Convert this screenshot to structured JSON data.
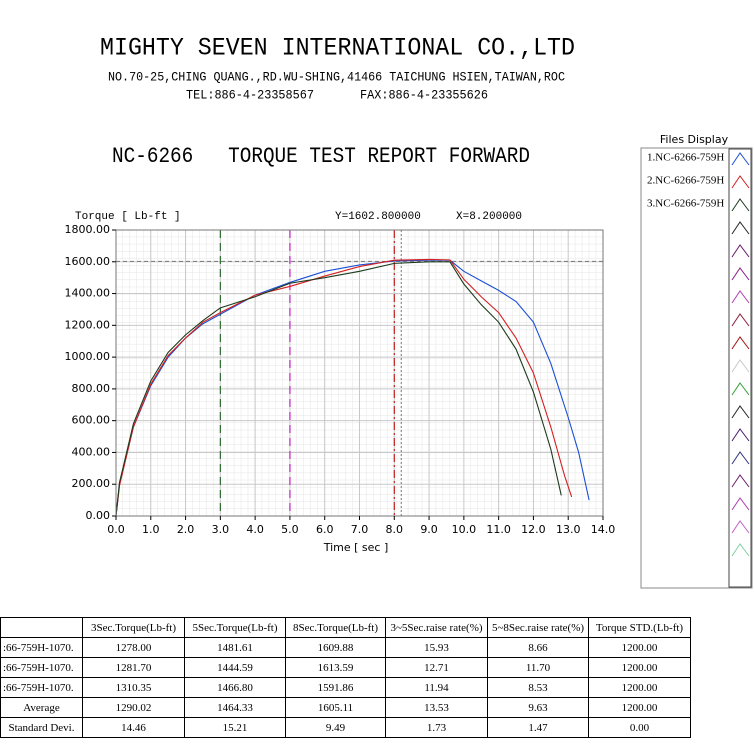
{
  "header": {
    "company": "MIGHTY SEVEN INTERNATIONAL CO.,LTD",
    "address": "NO.70-25,CHING QUANG.,RD.WU-SHING,41466 TAICHUNG HSIEN,TAIWAN,ROC",
    "tel": "TEL:886-4-23358567",
    "fax": "FAX:886-4-23355626",
    "report_title": "NC-6266   TORQUE TEST REPORT FORWARD"
  },
  "chart_data": {
    "type": "line",
    "y_label": "Torque [ Lb-ft ]",
    "x_label": "Time [ sec ]",
    "xlim": [
      0,
      14
    ],
    "ylim": [
      0,
      1800
    ],
    "grid": true,
    "xticks": [
      {
        "value": 0,
        "label": "0.0"
      },
      {
        "value": 1,
        "label": "1.0"
      },
      {
        "value": 2,
        "label": "2.0"
      },
      {
        "value": 3,
        "label": "3.0"
      },
      {
        "value": 4,
        "label": "4.0"
      },
      {
        "value": 5,
        "label": "5.0"
      },
      {
        "value": 6,
        "label": "6.0"
      },
      {
        "value": 7,
        "label": "7.0"
      },
      {
        "value": 8,
        "label": "8.0"
      },
      {
        "value": 9,
        "label": "9.0"
      },
      {
        "value": 10,
        "label": "10.0"
      },
      {
        "value": 11,
        "label": "11.0"
      },
      {
        "value": 12,
        "label": "12.0"
      },
      {
        "value": 13,
        "label": "13.0"
      },
      {
        "value": 14,
        "label": "14.0"
      }
    ],
    "yticks": [
      {
        "value": 0,
        "label": "0.00"
      },
      {
        "value": 200,
        "label": "200.00"
      },
      {
        "value": 400,
        "label": "400.00"
      },
      {
        "value": 600,
        "label": "600.00"
      },
      {
        "value": 800,
        "label": "800.00"
      },
      {
        "value": 1000,
        "label": "1000.00"
      },
      {
        "value": 1200,
        "label": "1200.00"
      },
      {
        "value": 1400,
        "label": "1400.00"
      },
      {
        "value": 1600,
        "label": "1600.00"
      },
      {
        "value": 1800,
        "label": "1800.00"
      }
    ],
    "markers": [
      {
        "x": 3,
        "color": "#2f6b2f",
        "dash": "dash"
      },
      {
        "x": 5,
        "color": "#c020c0",
        "dash": "dash"
      },
      {
        "x": 8,
        "color": "#c02020",
        "dash": "dashdot"
      }
    ],
    "cursor": {
      "x": {
        "value": 8.2,
        "label": "X=8.200000"
      },
      "y": {
        "value": 1602.8,
        "label": "Y=1602.800000"
      }
    },
    "series": [
      {
        "name": "1.NC-6266-759H",
        "color": "#1a4fd6",
        "x": [
          0,
          0.1,
          0.5,
          1,
          1.5,
          2,
          2.5,
          3,
          4,
          5,
          6,
          7,
          8,
          9,
          9.6,
          10,
          10.5,
          11,
          11.5,
          12,
          12.5,
          13,
          13.3,
          13.6
        ],
        "values": [
          0,
          200,
          560,
          820,
          1000,
          1120,
          1210,
          1270,
          1390,
          1470,
          1540,
          1580,
          1605,
          1610,
          1610,
          1540,
          1480,
          1420,
          1350,
          1220,
          960,
          620,
          400,
          100
        ]
      },
      {
        "name": "2.NC-6266-759H",
        "color": "#d42020",
        "x": [
          0,
          0.1,
          0.5,
          1,
          1.5,
          2,
          2.5,
          3,
          4,
          5,
          6,
          7,
          8,
          9,
          9.6,
          10,
          10.5,
          11,
          11.5,
          12,
          12.5,
          12.9,
          13.1
        ],
        "values": [
          0,
          190,
          560,
          830,
          1010,
          1120,
          1220,
          1280,
          1390,
          1445,
          1510,
          1570,
          1610,
          1615,
          1612,
          1490,
          1380,
          1280,
          1120,
          900,
          560,
          250,
          120
        ]
      },
      {
        "name": "3.NC-6266-759H",
        "color": "#1c3a1c",
        "x": [
          0,
          0.1,
          0.5,
          1,
          1.5,
          2,
          2.5,
          3,
          4,
          5,
          6,
          7,
          8,
          9,
          9.6,
          10,
          10.5,
          11,
          11.5,
          12,
          12.5,
          12.8
        ],
        "values": [
          0,
          210,
          580,
          850,
          1030,
          1140,
          1230,
          1310,
          1380,
          1465,
          1500,
          1540,
          1590,
          1600,
          1600,
          1460,
          1330,
          1220,
          1050,
          780,
          420,
          130
        ]
      }
    ]
  },
  "files_panel": {
    "title": "Files Display"
  },
  "table": {
    "header": [
      "3Sec.Torque(Lb-ft)",
      "5Sec.Torque(Lb-ft)",
      "8Sec.Torque(Lb-ft)",
      "3~5Sec.raise rate(%)",
      "5~8Sec.raise rate(%)",
      "Torque STD.(Lb-ft)"
    ],
    "rows": [
      [
        ":66-759H-1070.",
        "1278.00",
        "1481.61",
        "1609.88",
        "15.93",
        "8.66",
        "1200.00"
      ],
      [
        ":66-759H-1070.",
        "1281.70",
        "1444.59",
        "1613.59",
        "12.71",
        "11.70",
        "1200.00"
      ],
      [
        ":66-759H-1070.",
        "1310.35",
        "1466.80",
        "1591.86",
        "11.94",
        "8.53",
        "1200.00"
      ],
      [
        "Average",
        "1290.02",
        "1464.33",
        "1605.11",
        "13.53",
        "9.63",
        "1200.00"
      ],
      [
        "Standard Devi.",
        "14.46",
        "15.21",
        "9.49",
        "1.73",
        "1.47",
        "0.00"
      ]
    ]
  }
}
